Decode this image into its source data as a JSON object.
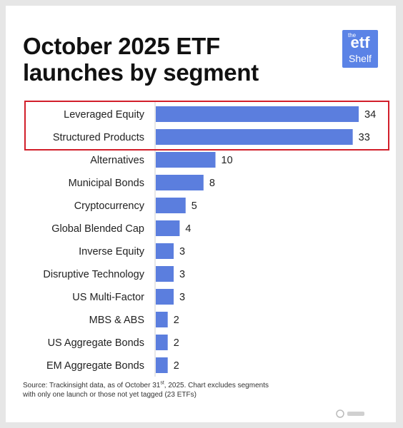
{
  "header": {
    "title_line1": "October 2025 ETF",
    "title_line2": "launches by segment"
  },
  "logo": {
    "the": "the",
    "etf": "etf",
    "shelf": "Shelf"
  },
  "colors": {
    "bar": "#5b7ede",
    "highlight_box": "#d21f2a",
    "text": "#222222"
  },
  "chart_data": {
    "type": "bar",
    "orientation": "horizontal",
    "title": "October 2025 ETF launches by segment",
    "categories": [
      "Leveraged Equity",
      "Structured Products",
      "Alternatives",
      "Municipal Bonds",
      "Cryptocurrency",
      "Global Blended Cap",
      "Inverse Equity",
      "Disruptive Technology",
      "US Multi-Factor",
      "MBS & ABS",
      "US Aggregate Bonds",
      "EM Aggregate Bonds"
    ],
    "values": [
      34,
      33,
      10,
      8,
      5,
      4,
      3,
      3,
      3,
      2,
      2,
      2
    ],
    "data_labels": true,
    "highlighted": [
      "Leveraged Equity",
      "Structured Products"
    ],
    "grid": false,
    "xlim": [
      0,
      34
    ]
  },
  "footer": {
    "source_line1_a": "Source: Trackinsight data, as of October 31",
    "source_line1_sup": "st",
    "source_line1_b": ", 2025. Chart excludes segments",
    "source_line2": "with only one launch or those not yet tagged (23 ETFs)"
  }
}
